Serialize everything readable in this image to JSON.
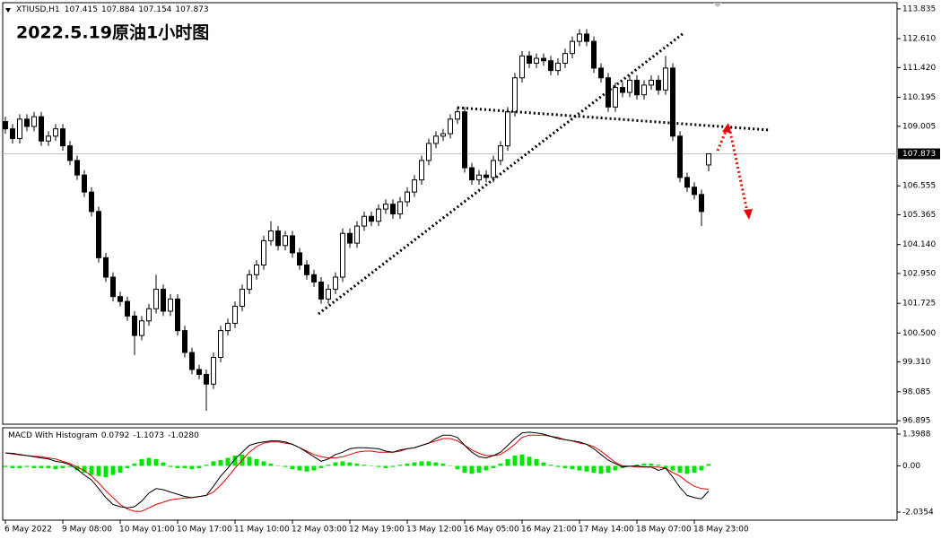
{
  "chart_data": [
    {
      "type": "candlestick",
      "title": "2022.5.19原油1小时图",
      "symbol": "XTIUSD,H1",
      "up_color": "#ffffff",
      "down_color": "#000000",
      "wick_color": "#000000",
      "open": [
        109.2,
        108.9,
        108.5,
        109.3,
        109.0,
        109.4,
        108.4,
        108.6,
        108.9,
        108.2,
        107.6,
        107.0,
        106.3,
        105.5,
        103.6,
        102.8,
        102.0,
        101.8,
        101.2,
        100.4,
        101.0,
        101.5,
        102.3,
        101.4,
        101.9,
        100.6,
        99.7,
        99.0,
        98.8,
        98.4,
        99.5,
        100.6,
        100.9,
        101.6,
        102.3,
        102.9,
        103.3,
        104.3,
        104.7,
        104.1,
        104.5,
        103.8,
        103.3,
        102.9,
        102.6,
        101.9,
        102.3,
        102.8,
        104.6,
        104.2,
        104.9,
        105.3,
        105.1,
        105.6,
        105.8,
        105.4,
        105.9,
        106.3,
        106.8,
        107.6,
        108.3,
        108.6,
        108.7,
        109.3,
        109.6,
        107.3,
        106.8,
        107.0,
        106.9,
        107.6,
        108.2,
        109.6,
        111.0,
        111.9,
        111.6,
        111.8,
        111.7,
        111.3,
        111.6,
        112.0,
        112.5,
        112.8,
        112.5,
        111.4,
        111.0,
        109.8,
        110.6,
        110.4,
        110.9,
        110.3,
        110.7,
        110.9,
        110.5,
        111.4,
        108.6,
        106.9,
        106.5,
        106.2,
        107.415
      ],
      "high": [
        109.4,
        109.1,
        109.5,
        109.5,
        109.6,
        109.6,
        108.8,
        109.1,
        109.1,
        108.4,
        107.8,
        107.2,
        106.5,
        105.7,
        103.8,
        103.0,
        102.2,
        102.0,
        101.4,
        101.2,
        101.7,
        102.9,
        102.5,
        102.1,
        102.1,
        100.8,
        99.9,
        99.2,
        99.0,
        99.7,
        100.8,
        101.1,
        101.8,
        102.5,
        103.1,
        103.5,
        104.5,
        105.1,
        104.9,
        104.7,
        104.7,
        104.0,
        103.5,
        103.1,
        102.8,
        102.5,
        103.0,
        104.8,
        104.8,
        105.1,
        105.5,
        105.5,
        105.8,
        106.0,
        106.0,
        106.1,
        106.5,
        107.0,
        107.8,
        108.5,
        108.8,
        108.9,
        109.5,
        109.8,
        109.8,
        107.5,
        107.2,
        107.2,
        107.8,
        108.4,
        109.8,
        111.2,
        112.1,
        112.1,
        112.0,
        112.0,
        111.9,
        111.8,
        112.2,
        112.7,
        113.0,
        113.0,
        112.7,
        111.6,
        111.2,
        110.8,
        110.8,
        111.1,
        111.1,
        110.9,
        111.1,
        111.1,
        111.9,
        111.6,
        108.8,
        107.1,
        106.7,
        106.4,
        107.884
      ],
      "low": [
        108.7,
        108.3,
        108.3,
        108.8,
        108.8,
        108.2,
        108.2,
        108.4,
        108.0,
        107.4,
        106.8,
        106.1,
        105.3,
        103.4,
        102.6,
        101.8,
        101.6,
        101.0,
        99.6,
        100.2,
        100.8,
        101.3,
        101.2,
        101.2,
        100.4,
        99.5,
        98.8,
        98.6,
        97.3,
        98.2,
        99.3,
        100.4,
        100.7,
        101.4,
        102.1,
        102.7,
        103.1,
        104.1,
        103.9,
        103.9,
        103.6,
        103.1,
        102.7,
        102.4,
        101.7,
        101.7,
        102.1,
        102.6,
        104.0,
        104.0,
        104.7,
        104.9,
        104.9,
        105.4,
        105.2,
        105.2,
        105.7,
        106.1,
        106.6,
        107.4,
        108.1,
        108.4,
        108.5,
        109.1,
        107.1,
        106.6,
        106.6,
        106.7,
        106.7,
        107.4,
        108.0,
        109.4,
        110.8,
        111.4,
        111.4,
        111.5,
        111.1,
        111.1,
        111.4,
        111.8,
        112.3,
        112.3,
        111.2,
        110.8,
        109.6,
        109.6,
        110.2,
        110.2,
        110.1,
        110.1,
        110.5,
        110.3,
        110.3,
        108.4,
        106.7,
        106.3,
        106.0,
        104.9,
        107.154
      ],
      "close": [
        108.9,
        108.5,
        109.3,
        109.0,
        109.4,
        108.4,
        108.6,
        108.9,
        108.2,
        107.6,
        107.0,
        106.3,
        105.5,
        103.6,
        102.8,
        102.0,
        101.8,
        101.2,
        100.4,
        101.0,
        101.5,
        102.3,
        101.4,
        101.9,
        100.6,
        99.7,
        99.0,
        98.8,
        98.4,
        99.5,
        100.6,
        100.9,
        101.6,
        102.3,
        102.9,
        103.3,
        104.3,
        104.7,
        104.1,
        104.5,
        103.8,
        103.3,
        102.9,
        102.6,
        101.9,
        102.3,
        102.8,
        104.6,
        104.2,
        104.9,
        105.3,
        105.1,
        105.6,
        105.8,
        105.4,
        105.9,
        106.3,
        106.8,
        107.6,
        108.3,
        108.6,
        108.7,
        109.3,
        109.6,
        107.3,
        106.8,
        107.0,
        106.9,
        107.6,
        108.2,
        109.6,
        111.0,
        111.9,
        111.6,
        111.8,
        111.7,
        111.3,
        111.6,
        112.0,
        112.5,
        112.8,
        112.5,
        111.4,
        111.0,
        109.8,
        110.6,
        110.4,
        110.9,
        110.3,
        110.7,
        110.9,
        110.5,
        111.4,
        108.6,
        106.9,
        106.5,
        106.2,
        105.5,
        107.873
      ],
      "xlim": [
        -0.375,
        124.25
      ],
      "xticks": [
        {
          "value": 0,
          "label": "6 May 2022"
        },
        {
          "value": 8,
          "label": "9 May 08:00"
        },
        {
          "value": 16,
          "label": "10 May 01:00"
        },
        {
          "value": 24,
          "label": "10 May 17:00"
        },
        {
          "value": 32,
          "label": "11 May 10:00"
        },
        {
          "value": 40,
          "label": "12 May 03:00"
        },
        {
          "value": 48,
          "label": "12 May 19:00"
        },
        {
          "value": 56,
          "label": "13 May 12:00"
        },
        {
          "value": 64,
          "label": "16 May 05:00"
        },
        {
          "value": 72,
          "label": "16 May 21:00"
        },
        {
          "value": 80,
          "label": "17 May 14:00"
        },
        {
          "value": 88,
          "label": "18 May 07:00"
        },
        {
          "value": 96,
          "label": "18 May 23:00"
        }
      ],
      "ylim": [
        96.75,
        114.09
      ],
      "yticks": [
        113.835,
        {
          "value": 112.61,
          "label": "112.610"
        },
        {
          "value": 111.42,
          "label": "111.420"
        },
        110.195,
        109.005,
        106.555,
        105.365,
        {
          "value": 104.14,
          "label": "104.140"
        },
        {
          "value": 102.95,
          "label": "102.950"
        },
        101.725,
        {
          "value": 100.5,
          "label": "100.500"
        },
        {
          "value": 99.31,
          "label": "99.310"
        },
        98.085,
        96.895
      ]
    },
    {
      "type": "macd",
      "title": "MACD With Histogram",
      "ylim": [
        -2.391,
        1.675
      ],
      "yticks": [
        1.3988,
        {
          "value": 0,
          "label": "0.00"
        },
        -2.0354
      ],
      "histogram": {
        "color": "#00e600",
        "values": [
          -0.05,
          -0.1,
          -0.1,
          -0.05,
          -0.1,
          -0.1,
          -0.1,
          -0.15,
          -0.1,
          -0.05,
          -0.2,
          -0.3,
          -0.4,
          -0.45,
          -0.5,
          -0.4,
          -0.3,
          -0.1,
          0.1,
          0.3,
          0.35,
          0.3,
          0.15,
          -0.05,
          -0.1,
          -0.1,
          -0.15,
          -0.1,
          0.05,
          0.2,
          0.25,
          0.35,
          0.45,
          0.5,
          0.4,
          0.3,
          0.2,
          0.1,
          0.0,
          -0.05,
          -0.15,
          -0.2,
          -0.25,
          -0.2,
          -0.1,
          0.05,
          0.15,
          0.2,
          0.15,
          0.1,
          0.05,
          0.0,
          -0.05,
          -0.1,
          -0.05,
          0.05,
          0.1,
          0.15,
          0.2,
          0.2,
          0.15,
          0.1,
          0.0,
          -0.15,
          -0.3,
          -0.35,
          -0.3,
          -0.2,
          -0.1,
          0.1,
          0.3,
          0.45,
          0.5,
          0.4,
          0.3,
          0.15,
          0.05,
          -0.05,
          -0.1,
          -0.15,
          -0.2,
          -0.25,
          -0.3,
          -0.35,
          -0.3,
          -0.2,
          -0.1,
          0.0,
          0.05,
          0.1,
          0.1,
          0.05,
          -0.1,
          -0.2,
          -0.3,
          -0.35,
          -0.3,
          -0.2,
          0.0792
        ]
      },
      "macd": {
        "color": "#000000",
        "values": [
          0.57,
          0.55,
          0.5,
          0.45,
          0.4,
          0.35,
          0.3,
          0.2,
          0.15,
          0.05,
          -0.15,
          -0.4,
          -0.62,
          -1.0,
          -1.4,
          -1.7,
          -1.8,
          -1.85,
          -1.8,
          -1.55,
          -1.2,
          -1.0,
          -1.05,
          -1.15,
          -1.25,
          -1.35,
          -1.4,
          -1.35,
          -1.3,
          -0.9,
          -0.45,
          -0.1,
          0.3,
          0.6,
          0.9,
          1.0,
          1.05,
          1.1,
          1.1,
          1.05,
          0.95,
          0.8,
          0.6,
          0.4,
          0.2,
          0.3,
          0.5,
          0.6,
          0.75,
          0.8,
          0.8,
          0.78,
          0.75,
          0.65,
          0.6,
          0.7,
          0.75,
          0.8,
          0.9,
          1.0,
          1.2,
          1.35,
          1.35,
          1.25,
          0.9,
          0.6,
          0.4,
          0.35,
          0.45,
          0.6,
          0.9,
          1.2,
          1.45,
          1.48,
          1.45,
          1.4,
          1.3,
          1.2,
          1.15,
          1.1,
          1.05,
          0.95,
          0.75,
          0.5,
          0.25,
          0.1,
          -0.05,
          -0.02,
          0.0,
          -0.05,
          -0.05,
          -0.2,
          -0.1,
          -0.5,
          -0.95,
          -1.3,
          -1.4,
          -1.45,
          -1.1073
        ]
      },
      "signal": {
        "color": "#e00000",
        "values": [
          0.57,
          0.52,
          0.48,
          0.45,
          0.42,
          0.4,
          0.35,
          0.3,
          0.2,
          0.1,
          -0.05,
          -0.2,
          -0.45,
          -0.75,
          -1.1,
          -1.4,
          -1.7,
          -1.9,
          -2.0,
          -2.0,
          -1.85,
          -1.7,
          -1.6,
          -1.5,
          -1.45,
          -1.42,
          -1.4,
          -1.35,
          -1.3,
          -1.15,
          -0.85,
          -0.5,
          -0.1,
          0.25,
          0.6,
          0.85,
          1.0,
          1.05,
          1.05,
          1.0,
          0.95,
          0.8,
          0.65,
          0.5,
          0.4,
          0.35,
          0.35,
          0.4,
          0.5,
          0.6,
          0.65,
          0.65,
          0.6,
          0.6,
          0.6,
          0.65,
          0.75,
          0.8,
          0.9,
          1.0,
          1.1,
          1.2,
          1.2,
          1.1,
          0.9,
          0.7,
          0.55,
          0.45,
          0.45,
          0.5,
          0.7,
          0.95,
          1.25,
          1.35,
          1.35,
          1.35,
          1.3,
          1.25,
          1.15,
          1.1,
          1.0,
          0.95,
          0.85,
          0.65,
          0.4,
          0.15,
          0.0,
          -0.02,
          -0.05,
          -0.05,
          -0.05,
          -0.05,
          -0.1,
          -0.3,
          -0.45,
          -0.7,
          -0.9,
          -1.0,
          -1.028
        ],
        "value_labels": [
          null,
          null,
          null,
          null,
          null,
          null,
          null,
          null,
          null,
          null,
          null,
          null,
          null,
          null,
          null,
          null,
          null,
          null,
          null,
          null,
          null,
          null,
          null,
          null,
          null,
          null,
          null,
          null,
          null,
          null,
          null,
          null,
          null,
          null,
          null,
          null,
          null,
          null,
          null,
          null,
          null,
          null,
          null,
          null,
          null,
          null,
          null,
          null,
          null,
          null,
          null,
          null,
          null,
          null,
          null,
          null,
          null,
          null,
          null,
          null,
          null,
          null,
          null,
          null,
          null,
          null,
          null,
          null,
          null,
          null,
          null,
          null,
          null,
          null,
          null,
          null,
          null,
          null,
          null,
          null,
          null,
          null,
          null,
          null,
          null,
          null,
          null,
          null,
          null,
          null,
          null,
          null,
          null,
          null,
          null,
          null,
          null,
          null,
          "-1.0280"
        ]
      }
    }
  ]
}
